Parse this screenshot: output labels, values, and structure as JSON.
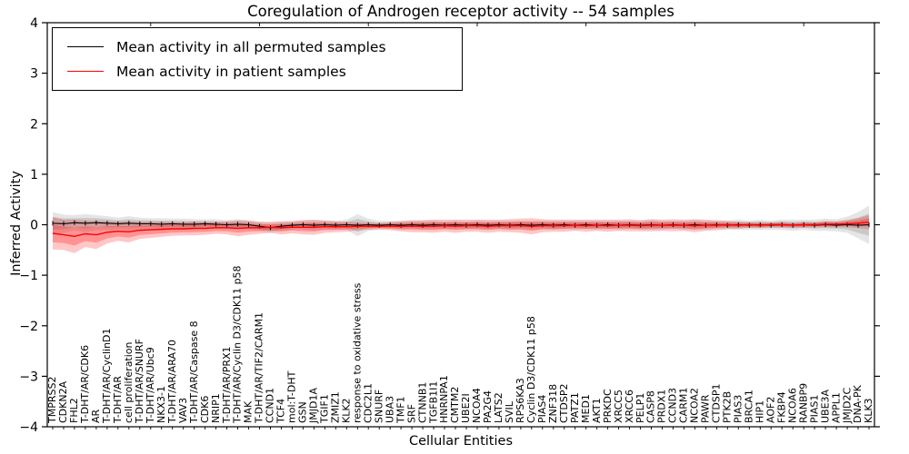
{
  "chart_data": {
    "type": "line",
    "title": "Coregulation of Androgen receptor activity -- 54 samples",
    "xlabel": "Cellular Entities",
    "ylabel": "Inferred Activity",
    "ylim": [
      -4,
      4
    ],
    "ytick_values": [
      4,
      3,
      2,
      1,
      0,
      -1,
      -2,
      -3,
      -4
    ],
    "ytick_labels": [
      "4",
      "3",
      "2",
      "1",
      "0",
      "−1",
      "−2",
      "−3",
      "−4"
    ],
    "grid": false,
    "legend_position": "upper-left",
    "legend": [
      {
        "label": "Mean activity in all permuted samples",
        "color": "#000000"
      },
      {
        "label": "Mean activity in patient samples",
        "color": "#ff0000"
      }
    ],
    "categories": [
      "TMPRSS2",
      "CDKN2A",
      "FHL2",
      "T-DHT/AR/CDK6",
      "AR",
      "T-DHT/AR/CyclinD1",
      "T-DHT/AR",
      "cell proliferation",
      "T-DHT/AR/SNURF",
      "T-DHT/AR/Ubc9",
      "NKX3-1",
      "T-DHT/AR/ARA70",
      "VAV3",
      "T-DHT/AR/Caspase 8",
      "CDK6",
      "NRIP1",
      "T-DHT/AR/PRX1",
      "T-DHT/AR/Cyclin D3/CDK11 p58",
      "MAK",
      "T-DHT/AR/TIF2/CARM1",
      "CCND1",
      "TCF4",
      "mol:T-DHT",
      "GSN",
      "JMJD1A",
      "TGIF1",
      "ZMIZ1",
      "KLK2",
      "response to oxidative stress",
      "CDC2L1",
      "SNURF",
      "UBA3",
      "TMF1",
      "SRF",
      "CTNNB1",
      "TGFB1I1",
      "HNRNPA1",
      "CMTM2",
      "UBE2I",
      "NCOA4",
      "PA2G4",
      "LATS2",
      "SVIL",
      "RPS6KA3",
      "Cyclin D3/CDK11 p58",
      "PIAS4",
      "ZNF318",
      "CTDSP2",
      "PATZ1",
      "MED1",
      "AKT1",
      "PRKDC",
      "XRCC5",
      "XRCC6",
      "PELP1",
      "CASP8",
      "PRDX1",
      "CCND3",
      "CARM1",
      "NCOA2",
      "PAWR",
      "CTDSP1",
      "PTK2B",
      "PIAS3",
      "BRCA1",
      "HIP1",
      "AOF2",
      "FKBP4",
      "NCOA6",
      "RANBP9",
      "PIAS1",
      "UBE3A",
      "APPL1",
      "JMJD2C",
      "DNA-PK",
      "KLK3"
    ],
    "series": [
      {
        "name": "permuted",
        "label": "Mean activity in all permuted samples",
        "color": "#000000",
        "band_color": "#000000",
        "mean": [
          0.03,
          0.02,
          0.04,
          0.03,
          0.04,
          0.03,
          0.02,
          0.03,
          0.02,
          0.02,
          0.01,
          0.02,
          0.01,
          0.01,
          0.02,
          0.01,
          0.0,
          0.01,
          0.0,
          -0.03,
          -0.06,
          -0.03,
          -0.01,
          0,
          -0.01,
          0,
          -0.01,
          0,
          -0.01,
          0,
          -0.01,
          0,
          -0.01,
          0,
          -0.01,
          0,
          -0.01,
          0,
          -0.01,
          0,
          -0.01,
          0,
          -0.01,
          0,
          -0.01,
          0,
          -0.01,
          0,
          -0.01,
          0,
          -0.01,
          0,
          -0.01,
          0,
          -0.01,
          0,
          -0.01,
          0,
          -0.01,
          0,
          -0.01,
          0,
          -0.01,
          0,
          -0.01,
          0,
          -0.01,
          0,
          -0.01,
          0,
          -0.01,
          0,
          -0.01,
          0,
          -0.01,
          0
        ],
        "band_halfwidth": [
          0.22,
          0.18,
          0.15,
          0.18,
          0.15,
          0.14,
          0.12,
          0.14,
          0.12,
          0.11,
          0.12,
          0.1,
          0.11,
          0.1,
          0.09,
          0.1,
          0.09,
          0.1,
          0.09,
          0.09,
          0.1,
          0.09,
          0.08,
          0.09,
          0.1,
          0.09,
          0.09,
          0.1,
          0.22,
          0.12,
          0.09,
          0.08,
          0.09,
          0.08,
          0.09,
          0.09,
          0.08,
          0.09,
          0.08,
          0.09,
          0.09,
          0.08,
          0.09,
          0.08,
          0.09,
          0.08,
          0.09,
          0.08,
          0.09,
          0.08,
          0.09,
          0.08,
          0.09,
          0.08,
          0.09,
          0.1,
          0.09,
          0.08,
          0.09,
          0.1,
          0.09,
          0.08,
          0.09,
          0.1,
          0.09,
          0.1,
          0.09,
          0.1,
          0.11,
          0.1,
          0.11,
          0.12,
          0.12,
          0.16,
          0.26,
          0.38
        ]
      },
      {
        "name": "patient",
        "label": "Mean activity in patient samples",
        "color": "#ff0000",
        "band_color": "#ff0000",
        "mean": [
          -0.17,
          -0.2,
          -0.23,
          -0.18,
          -0.2,
          -0.15,
          -0.13,
          -0.14,
          -0.11,
          -0.1,
          -0.09,
          -0.08,
          -0.08,
          -0.07,
          -0.07,
          -0.06,
          -0.06,
          -0.07,
          -0.06,
          -0.06,
          -0.05,
          -0.06,
          -0.05,
          -0.05,
          -0.05,
          -0.04,
          -0.04,
          -0.04,
          -0.03,
          -0.03,
          -0.03,
          -0.03,
          -0.03,
          -0.03,
          -0.03,
          -0.03,
          -0.02,
          -0.03,
          -0.02,
          -0.02,
          -0.03,
          -0.02,
          -0.02,
          -0.02,
          -0.03,
          -0.02,
          -0.02,
          -0.02,
          -0.01,
          -0.02,
          -0.01,
          -0.02,
          -0.01,
          -0.01,
          -0.02,
          -0.01,
          -0.01,
          -0.01,
          -0.01,
          -0.02,
          -0.01,
          -0.01,
          0,
          -0.01,
          0,
          -0.01,
          0,
          0,
          -0.01,
          0,
          0,
          0.01,
          0.01,
          0.02,
          0.03,
          0.05
        ],
        "band_halfwidth": [
          0.32,
          0.3,
          0.33,
          0.26,
          0.28,
          0.22,
          0.19,
          0.21,
          0.17,
          0.16,
          0.15,
          0.14,
          0.13,
          0.14,
          0.13,
          0.12,
          0.13,
          0.16,
          0.14,
          0.12,
          0.11,
          0.13,
          0.12,
          0.14,
          0.15,
          0.12,
          0.11,
          0.1,
          0.08,
          0.07,
          0.06,
          0.08,
          0.1,
          0.12,
          0.12,
          0.13,
          0.12,
          0.13,
          0.12,
          0.12,
          0.13,
          0.12,
          0.13,
          0.14,
          0.16,
          0.13,
          0.12,
          0.12,
          0.11,
          0.12,
          0.11,
          0.12,
          0.11,
          0.12,
          0.11,
          0.12,
          0.11,
          0.12,
          0.11,
          0.13,
          0.11,
          0.1,
          0.08,
          0.07,
          0.06,
          0.06,
          0.05,
          0.06,
          0.05,
          0.06,
          0.05,
          0.06,
          0.06,
          0.07,
          0.1,
          0.14
        ]
      }
    ]
  }
}
